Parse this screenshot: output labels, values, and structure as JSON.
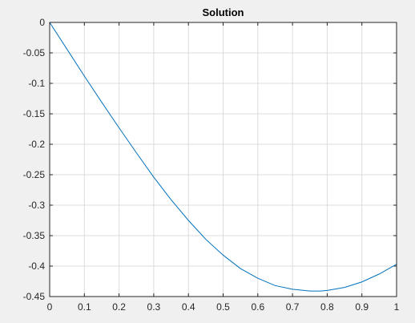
{
  "window": {
    "background": "#f0f0f0"
  },
  "chart_data": {
    "type": "line",
    "title": "Solution",
    "xlabel": "",
    "ylabel": "",
    "xlim": [
      0,
      1
    ],
    "ylim": [
      -0.45,
      0
    ],
    "xticks": [
      0,
      0.1,
      0.2,
      0.3,
      0.4,
      0.5,
      0.6,
      0.7,
      0.8,
      0.9,
      1
    ],
    "xtick_labels": [
      "0",
      "0.1",
      "0.2",
      "0.3",
      "0.4",
      "0.5",
      "0.6",
      "0.7",
      "0.8",
      "0.9",
      "1"
    ],
    "yticks": [
      0,
      -0.05,
      -0.1,
      -0.15,
      -0.2,
      -0.25,
      -0.3,
      -0.35,
      -0.4,
      -0.45
    ],
    "ytick_labels": [
      "0",
      "-0.05",
      "-0.1",
      "-0.15",
      "-0.2",
      "-0.25",
      "-0.3",
      "-0.35",
      "-0.4",
      "-0.45"
    ],
    "grid": true,
    "box": true,
    "line_color": "#0072bd",
    "plot_background": "#ffffff",
    "grid_color": "#dcdcdc",
    "series": [
      {
        "x": [
          0,
          0.05,
          0.1,
          0.15,
          0.2,
          0.25,
          0.3,
          0.35,
          0.4,
          0.45,
          0.5,
          0.55,
          0.6,
          0.65,
          0.7,
          0.75,
          0.78,
          0.8,
          0.85,
          0.9,
          0.95,
          1
        ],
        "y": [
          0,
          -0.044,
          -0.088,
          -0.131,
          -0.173,
          -0.214,
          -0.254,
          -0.291,
          -0.325,
          -0.356,
          -0.382,
          -0.404,
          -0.42,
          -0.432,
          -0.438,
          -0.441,
          -0.441,
          -0.44,
          -0.435,
          -0.426,
          -0.413,
          -0.397
        ]
      }
    ]
  }
}
